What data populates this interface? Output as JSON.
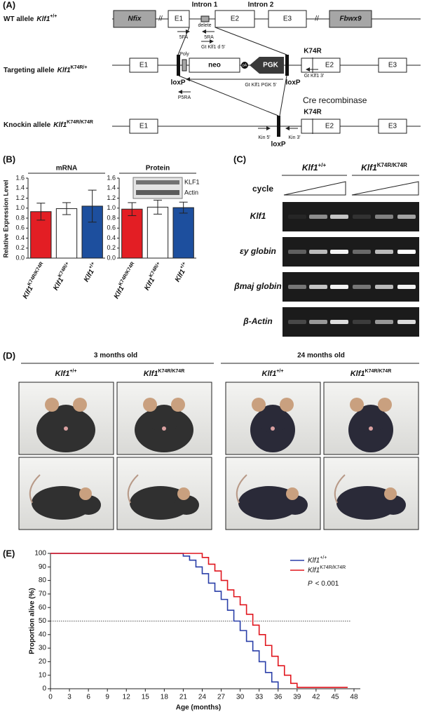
{
  "panel_a": {
    "label": "(A)",
    "rows": [
      {
        "prefix": "WT allele",
        "gene": "Klf1",
        "genotype": "+/+"
      },
      {
        "prefix": "Targeting allele",
        "gene": "Klf1",
        "genotype": "K74R/+"
      },
      {
        "prefix": "Knockin allele",
        "gene": "Klf1",
        "genotype": "K74R/K74R"
      }
    ],
    "labels": {
      "nfix": "Nfix",
      "fbwx9": "Fbwx9",
      "e1": "E1",
      "e2": "E2",
      "e3": "E3",
      "intron1": "Intron 1",
      "intron2": "Intron 2",
      "delete": "delete",
      "p5fa": "5FA",
      "p5ra": "5RA",
      "gt_d5": "Gt Klf1 d 5'",
      "poly": "Poly",
      "pa": "pA",
      "neo": "neo",
      "pgk": "PGK",
      "k74r": "K74R",
      "loxp": "loxP",
      "p5ra_t": "P5RA",
      "gt_pgk5": "Gt Klf1 PGK 5'",
      "gt3": "Gt Klf1 3'",
      "cre": "Cre recombinase",
      "kin5": "Kin 5'",
      "kin3": "Kin 3'"
    }
  },
  "panel_b": {
    "label": "(B)",
    "y_label": "Relative Expression Level",
    "blot": [
      "KLF1",
      "Actin"
    ]
  },
  "chart_data": [
    {
      "type": "bar",
      "title": "mRNA",
      "category_gene": "Klf1",
      "categories": [
        "K74R/K74R",
        "K74R/+",
        "+/+"
      ],
      "values": [
        0.93,
        0.99,
        1.04
      ],
      "errors": [
        0.17,
        0.12,
        0.32
      ],
      "colors": [
        "#e31e24",
        "#ffffff",
        "#1d4f9e"
      ],
      "ylim": [
        0,
        1.6
      ],
      "yticks": [
        {
          "value": 0,
          "label": "0.0"
        },
        0.2,
        0.4,
        0.6,
        0.8,
        {
          "value": 1,
          "label": "1.0"
        },
        1.2,
        1.4,
        1.6
      ]
    },
    {
      "type": "bar",
      "title": "Protein",
      "category_gene": "Klf1",
      "categories": [
        "K74R/K74R",
        "K74R/+",
        "+/+"
      ],
      "values": [
        0.98,
        1.02,
        1.01
      ],
      "errors": [
        0.13,
        0.14,
        0.11
      ],
      "colors": [
        "#e31e24",
        "#ffffff",
        "#1d4f9e"
      ],
      "ylim": [
        0,
        1.6
      ],
      "yticks": [
        {
          "value": 0,
          "label": "0.0"
        },
        0.2,
        0.4,
        0.6,
        0.8,
        {
          "value": 1,
          "label": "1.0"
        },
        1.2,
        1.4,
        1.6
      ]
    },
    {
      "type": "line",
      "label": "(E)",
      "x_label": "Age (months)",
      "y_label": "Proportion alive (%)",
      "xlim": [
        0,
        49
      ],
      "xticks": [
        0,
        3,
        6,
        9,
        12,
        15,
        18,
        21,
        24,
        27,
        30,
        33,
        36,
        39,
        42,
        45,
        48
      ],
      "ylim": [
        0,
        100
      ],
      "yticks": [
        0,
        10,
        20,
        30,
        40,
        50,
        60,
        70,
        80,
        90,
        100
      ],
      "reference_line": 50,
      "legend": "upper right",
      "annotation": {
        "symbol": "P",
        "text": "< 0.001"
      },
      "series": [
        {
          "name": "Klf1",
          "superscript": "+/+",
          "color": "#2a3fa8",
          "x": [
            0,
            21,
            22,
            23,
            24,
            25,
            26,
            27,
            28,
            29,
            30,
            31,
            32,
            33,
            34,
            35,
            36
          ],
          "values": [
            100,
            98,
            95,
            90,
            85,
            78,
            72,
            66,
            58,
            50,
            43,
            35,
            28,
            20,
            12,
            5,
            0
          ]
        },
        {
          "name": "Klf1",
          "superscript": "K74R/K74R",
          "color": "#e0161e",
          "x": [
            0,
            24,
            25,
            26,
            27,
            28,
            29,
            30,
            31,
            32,
            33,
            34,
            35,
            36,
            37,
            38,
            39,
            47
          ],
          "values": [
            100,
            97,
            92,
            87,
            80,
            73,
            68,
            62,
            55,
            47,
            40,
            32,
            24,
            17,
            10,
            4,
            1,
            1
          ]
        }
      ]
    }
  ],
  "panel_c": {
    "label": "(C)",
    "gene": "Klf1",
    "groups": [
      "+/+",
      "K74R/K74R"
    ],
    "cycle": "cycle",
    "rows": [
      "Klf1",
      "εy globin",
      "βmaj globin",
      "β-Actin"
    ]
  },
  "panel_d": {
    "label": "(D)",
    "ages": [
      "3 months old",
      "24 months old"
    ],
    "gene": "Klf1",
    "genotypes": [
      "+/+",
      "K74R/K74R"
    ]
  }
}
